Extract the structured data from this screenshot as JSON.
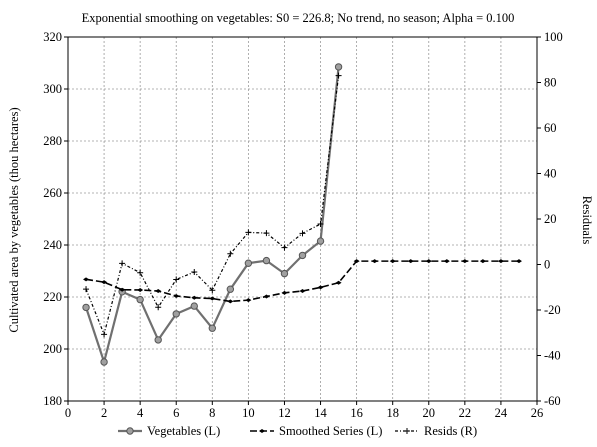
{
  "chart_data": {
    "type": "line",
    "title": "Exponential smoothing on vegetables:  S0 = 226.8; No trend, no season; Alpha = 0.100",
    "ylabel_left": "Cultivated area by vegetables (thou hectares)",
    "ylabel_right": "Residuals",
    "xlim": [
      0,
      26
    ],
    "ylim_left": [
      180,
      320
    ],
    "ylim_right": [
      -60,
      100
    ],
    "x_ticks": [
      "0",
      "2",
      "4",
      "6",
      "8",
      "10",
      "12",
      "14",
      "16",
      "18",
      "20",
      "22",
      "24",
      "26"
    ],
    "y_left_ticks": [
      "180",
      "200",
      "220",
      "240",
      "260",
      "280",
      "300",
      "320"
    ],
    "y_right_ticks": [
      "-60",
      "-40",
      "-20",
      "0",
      "20",
      "40",
      "60",
      "80",
      "100"
    ],
    "grid": true,
    "legend_position": "bottom",
    "series": [
      {
        "name": "Vegetables (L)",
        "axis": "left",
        "color": "#707070",
        "x": [
          1,
          2,
          3,
          4,
          5,
          6,
          7,
          8,
          9,
          10,
          11,
          12,
          13,
          14,
          15
        ],
        "values": [
          216,
          195,
          222,
          219,
          203.5,
          213.5,
          216.5,
          208,
          223,
          233,
          234,
          229,
          236,
          241.5,
          308.5
        ]
      },
      {
        "name": "Smoothed Series (L)",
        "axis": "left",
        "color": "#000000",
        "x": [
          1,
          2,
          3,
          4,
          5,
          6,
          7,
          8,
          9,
          10,
          11,
          12,
          13,
          14,
          15,
          16,
          17,
          18,
          19,
          20,
          21,
          22,
          23,
          24,
          25
        ],
        "values": [
          226.8,
          225.7,
          222.8,
          222.7,
          222.3,
          220.4,
          219.7,
          219.4,
          218.3,
          218.8,
          220.2,
          221.6,
          222.3,
          223.7,
          225.5,
          233.8,
          233.8,
          233.8,
          233.8,
          233.8,
          233.8,
          233.8,
          233.8,
          233.8,
          233.8
        ]
      },
      {
        "name": "Resids (R)",
        "axis": "right",
        "color": "#000000",
        "x": [
          1,
          2,
          3,
          4,
          5,
          6,
          7,
          8,
          9,
          10,
          11,
          12,
          13,
          14,
          15
        ],
        "values": [
          -10.8,
          -30.7,
          0.5,
          -3.6,
          -18.8,
          -6.6,
          -3.3,
          -11.3,
          4.7,
          14.1,
          13.8,
          7.4,
          13.7,
          17.8,
          83
        ]
      }
    ]
  }
}
